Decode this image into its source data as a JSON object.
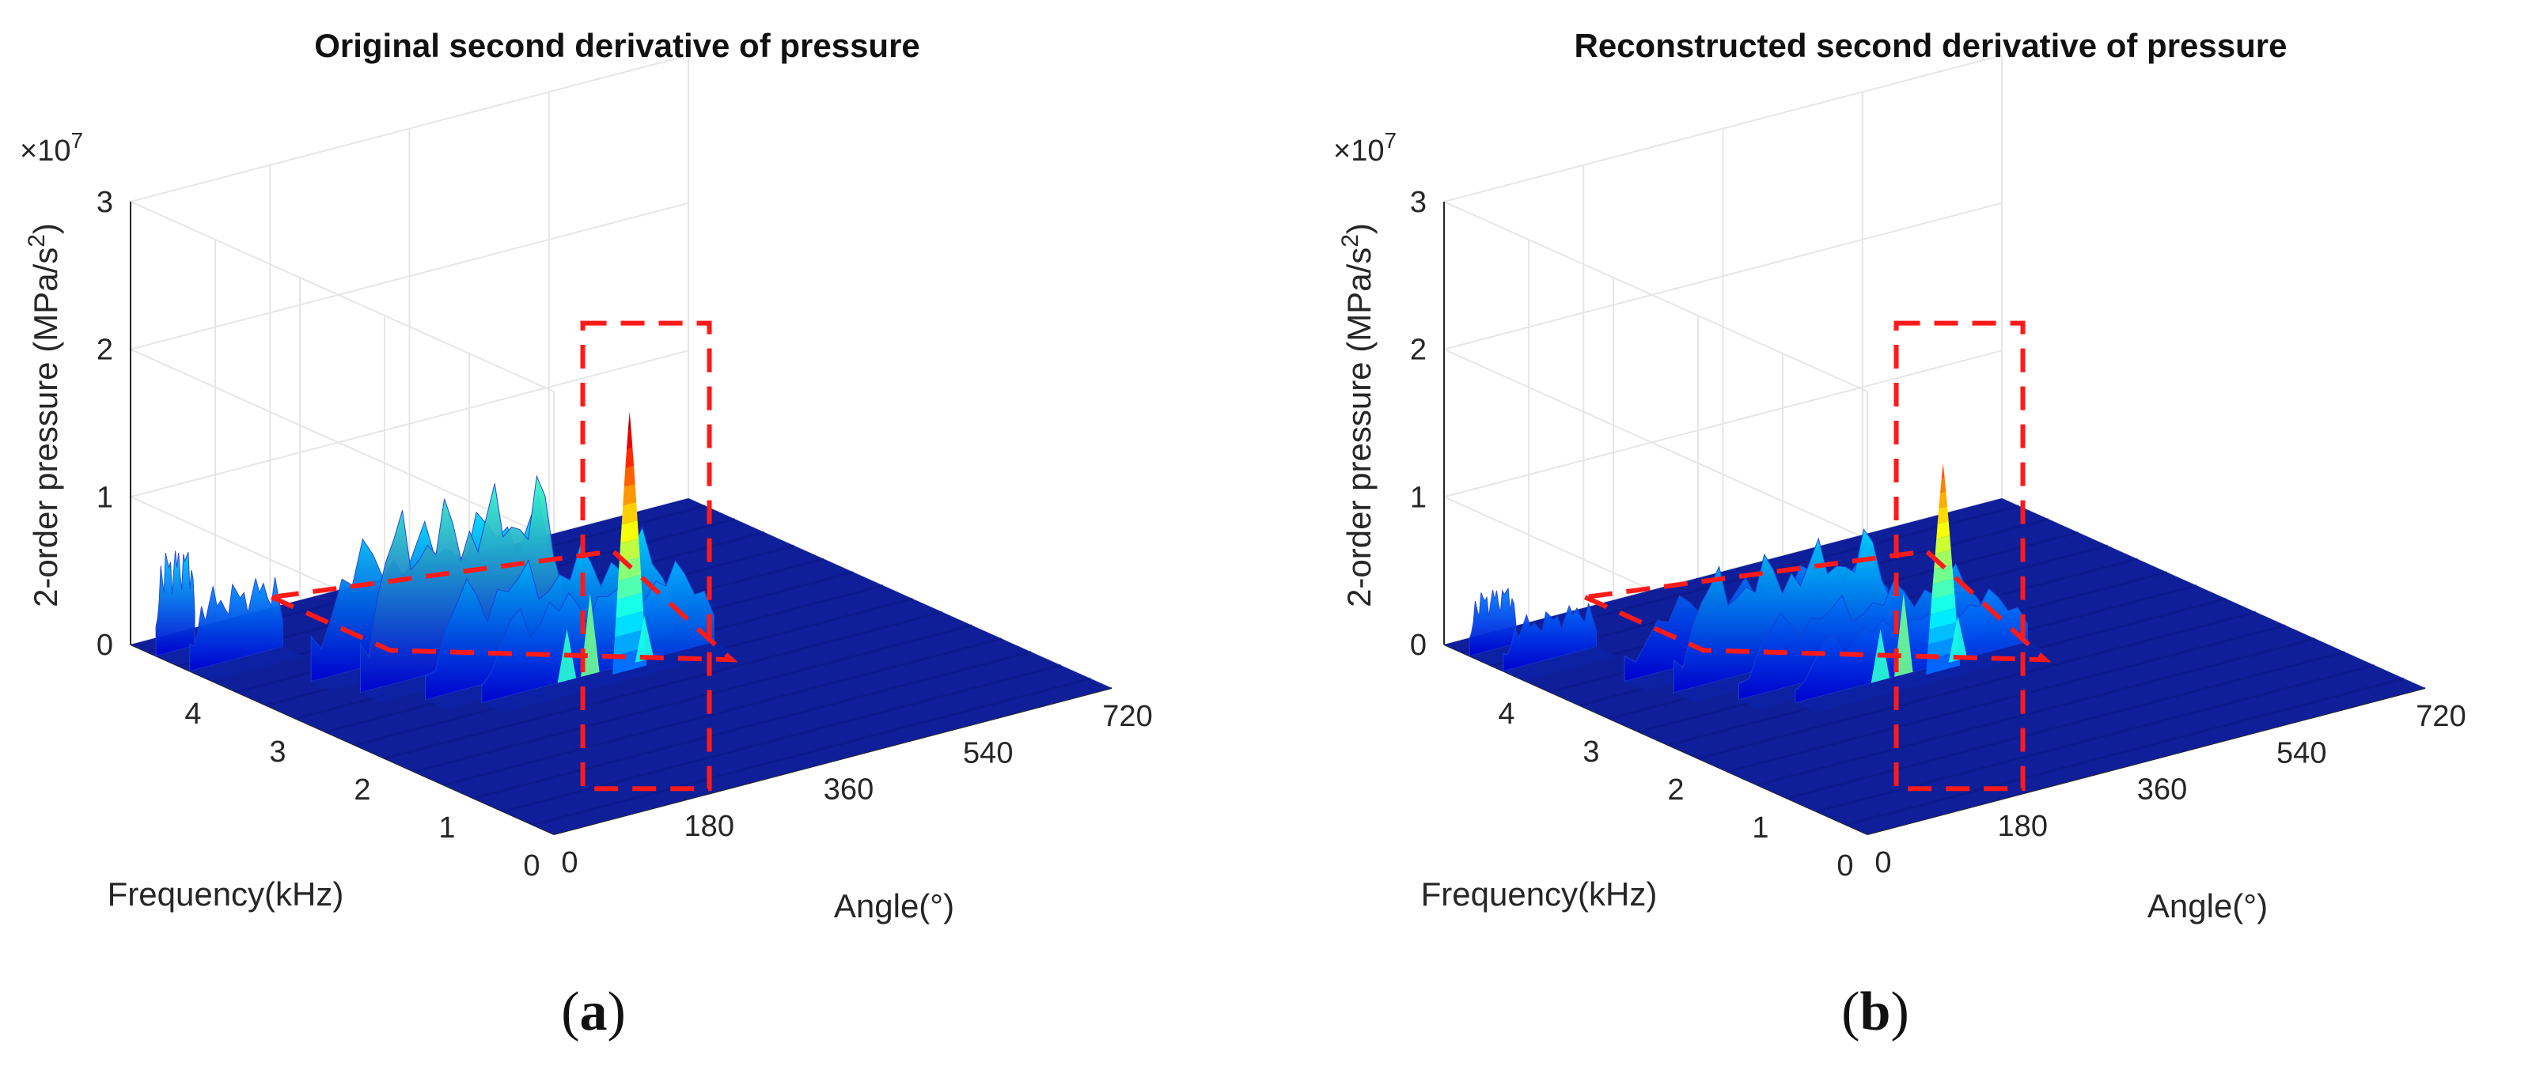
{
  "chart_data": [
    {
      "type": "surface3d",
      "title": "Original second derivative of pressure",
      "caption_letter": "a",
      "xlabel": "Angle(°)",
      "ylabel": "Frequency(kHz)",
      "zlabel": "2-order pressure (MPa/s",
      "zlabel_sup": "2",
      "zlabel_end": ")",
      "z_exponent_base": "×10",
      "z_exponent_power": "7",
      "xlim": [
        0,
        720
      ],
      "ylim": [
        0,
        5
      ],
      "zlim": [
        0,
        3
      ],
      "x_ticks": [
        "0",
        "180",
        "360",
        "540",
        "720"
      ],
      "y_ticks": [
        "0",
        "1",
        "2",
        "3",
        "4"
      ],
      "z_ticks": [
        "0",
        "1",
        "2",
        "3"
      ],
      "grid": true,
      "colormap": "jet",
      "peak": {
        "angle": 360,
        "frequency": 2.4,
        "value": 1.75
      },
      "ridges": [
        {
          "frequency": 4.7,
          "angle_start": 0,
          "angle_end": 50,
          "value": 0.75
        },
        {
          "frequency": 4.3,
          "angle_start": 0,
          "angle_end": 120,
          "value": 0.55
        },
        {
          "frequency": 3.6,
          "angle_start": 80,
          "angle_end": 400,
          "value": 0.9
        },
        {
          "frequency": 3.2,
          "angle_start": 100,
          "angle_end": 360,
          "value": 1.2
        },
        {
          "frequency": 2.8,
          "angle_start": 140,
          "angle_end": 460,
          "value": 0.8
        },
        {
          "frequency": 2.5,
          "angle_start": 180,
          "angle_end": 480,
          "value": 0.65
        }
      ],
      "annotations": [
        "dashed box around peak region",
        "dashed box around frequency band 2.3–3.6 kHz"
      ]
    },
    {
      "type": "surface3d",
      "title": "Reconstructed second derivative of pressure",
      "caption_letter": "b",
      "xlabel": "Angle(°)",
      "ylabel": "Frequency(kHz)",
      "zlabel": "2-order pressure (MPa/s",
      "zlabel_sup": "2",
      "zlabel_end": ")",
      "z_exponent_base": "×10",
      "z_exponent_power": "7",
      "xlim": [
        0,
        720
      ],
      "ylim": [
        0,
        5
      ],
      "zlim": [
        0,
        3
      ],
      "x_ticks": [
        "0",
        "180",
        "360",
        "540",
        "720"
      ],
      "y_ticks": [
        "0",
        "1",
        "2",
        "3",
        "4"
      ],
      "z_ticks": [
        "0",
        "1",
        "2",
        "3"
      ],
      "grid": true,
      "colormap": "jet",
      "peak": {
        "angle": 360,
        "frequency": 2.4,
        "value": 1.4
      },
      "ridges": [
        {
          "frequency": 4.7,
          "angle_start": 0,
          "angle_end": 60,
          "value": 0.45
        },
        {
          "frequency": 4.3,
          "angle_start": 0,
          "angle_end": 120,
          "value": 0.35
        },
        {
          "frequency": 3.6,
          "angle_start": 80,
          "angle_end": 420,
          "value": 0.5
        },
        {
          "frequency": 3.2,
          "angle_start": 100,
          "angle_end": 380,
          "value": 0.8
        },
        {
          "frequency": 2.8,
          "angle_start": 140,
          "angle_end": 460,
          "value": 0.55
        },
        {
          "frequency": 2.5,
          "angle_start": 180,
          "angle_end": 480,
          "value": 0.45
        }
      ],
      "annotations": [
        "dashed box around peak region",
        "dashed box around frequency band 2.3–3.6 kHz"
      ]
    }
  ]
}
